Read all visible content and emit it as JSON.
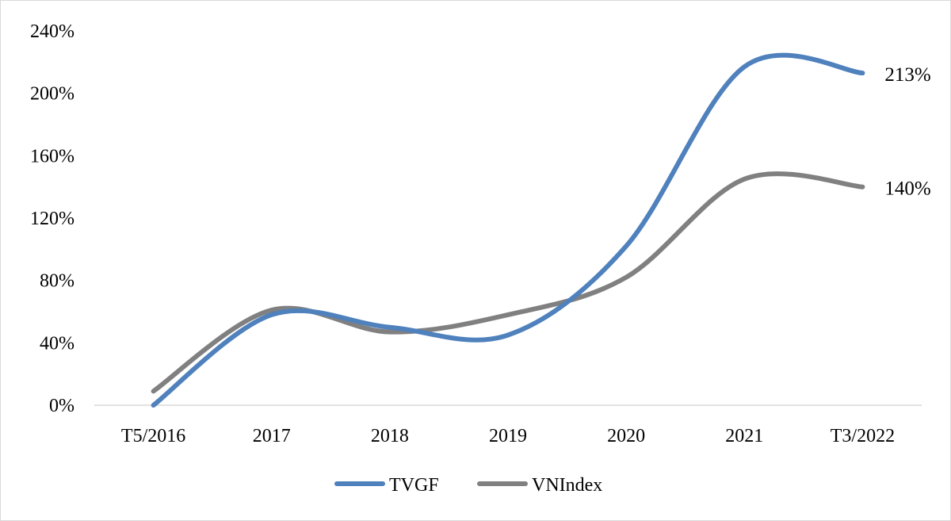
{
  "chart_data": {
    "type": "line",
    "title": "",
    "xlabel": "",
    "ylabel": "",
    "categories": [
      "T5/2016",
      "2017",
      "2018",
      "2019",
      "2020",
      "2021",
      "T3/2022"
    ],
    "ylim": [
      0,
      2.4
    ],
    "yticks": [
      0,
      0.4,
      0.8,
      1.2,
      1.6,
      2.0,
      2.4
    ],
    "ytick_labels": [
      "0%",
      "40%",
      "80%",
      "120%",
      "160%",
      "200%",
      "240%"
    ],
    "grid": false,
    "smooth": true,
    "legend_position": "bottom",
    "series": [
      {
        "name": "TVGF",
        "color": "#4f81bd",
        "values": [
          0.0,
          0.58,
          0.5,
          0.45,
          1.02,
          2.17,
          2.13
        ],
        "end_label": "213%"
      },
      {
        "name": "VNIndex",
        "color": "#808080",
        "values": [
          0.09,
          0.61,
          0.47,
          0.58,
          0.82,
          1.45,
          1.4
        ],
        "end_label": "140%"
      }
    ]
  }
}
